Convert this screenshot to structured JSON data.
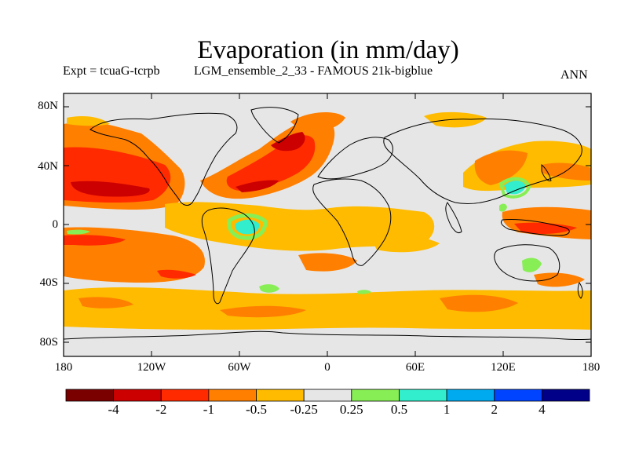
{
  "title": "Evaporation (in mm/day)",
  "subtitle_left": "Expt = tcuaG-tcrpb",
  "subtitle_center": "LGM_ensemble_2_33 - FAMOUS 21k-bigblue",
  "season": "ANN",
  "map": {
    "projection": "cylindrical equidistant",
    "lon_range": [
      -180,
      180
    ],
    "lat_range": [
      -90,
      90
    ],
    "y_tick_labels": [
      "80N",
      "40N",
      "0",
      "40S",
      "80S"
    ],
    "x_tick_labels": [
      "180",
      "120W",
      "60W",
      "0",
      "60E",
      "120E",
      "180"
    ]
  },
  "colorbar": {
    "colors": [
      "#7a0000",
      "#cc0000",
      "#ff2a00",
      "#ff7f00",
      "#ffbb00",
      "#e6e6e6",
      "#88ee55",
      "#33eecc",
      "#00aaee",
      "#0044ff",
      "#000088"
    ],
    "labels": [
      "-4",
      "-2",
      "-1",
      "-0.5",
      "-0.25",
      "0.25",
      "0.5",
      "1",
      "2",
      "4"
    ]
  }
}
